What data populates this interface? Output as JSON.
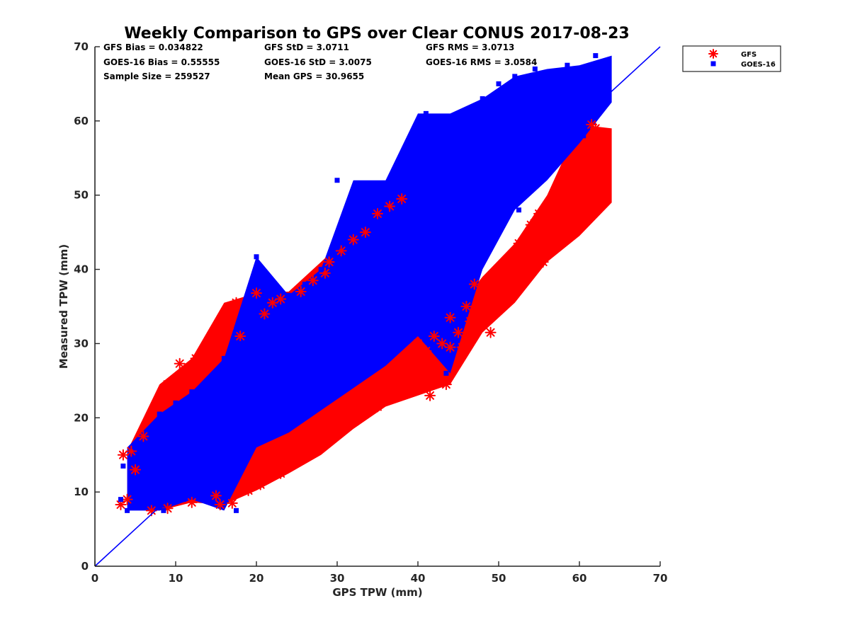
{
  "chart_data": {
    "type": "scatter",
    "title": "Weekly Comparison to GPS over Clear CONUS 2017-08-23",
    "xlabel": "GPS TPW (mm)",
    "ylabel": "Measured TPW (mm)",
    "xlim": [
      0,
      70
    ],
    "ylim": [
      0,
      70
    ],
    "xticks": [
      "0",
      "10",
      "20",
      "30",
      "40",
      "50",
      "60",
      "70"
    ],
    "yticks": [
      "0",
      "10",
      "20",
      "30",
      "40",
      "50",
      "60",
      "70"
    ],
    "grid": false,
    "legend_placement": "outside top-right",
    "reference_line": {
      "x": [
        0,
        70
      ],
      "y": [
        0,
        70
      ],
      "color": "#0000ff"
    },
    "stats": [
      [
        "GFS Bias = 0.034822",
        "GFS StD = 3.0711",
        "GFS RMS = 3.0713"
      ],
      [
        "GOES-16 Bias = 0.55555",
        "GOES-16 StD = 3.0075",
        "GOES-16 RMS = 3.0584"
      ],
      [
        "Sample Size = 259527",
        "Mean GPS = 30.9655",
        ""
      ]
    ],
    "series": [
      {
        "name": "GFS",
        "marker": "asterisk",
        "color": "#ff0000",
        "points": [
          [
            3.2,
            8.3
          ],
          [
            3.5,
            15.0
          ],
          [
            4.0,
            9.0
          ],
          [
            4.5,
            15.5
          ],
          [
            5.0,
            13.0
          ],
          [
            6.0,
            17.5
          ],
          [
            7.0,
            7.5
          ],
          [
            7.5,
            21.0
          ],
          [
            8.0,
            22.5
          ],
          [
            9.0,
            7.8
          ],
          [
            9.0,
            24.5
          ],
          [
            10.0,
            24.0
          ],
          [
            10.5,
            27.3
          ],
          [
            11.5,
            25.5
          ],
          [
            12.0,
            8.6
          ],
          [
            12.5,
            28.0
          ],
          [
            14.0,
            27.5
          ],
          [
            15.0,
            9.5
          ],
          [
            15.0,
            29.0
          ],
          [
            15.5,
            8.3
          ],
          [
            16.5,
            32.0
          ],
          [
            17.0,
            8.5
          ],
          [
            17.5,
            35.5
          ],
          [
            18.0,
            31.0
          ],
          [
            19.0,
            10.2
          ],
          [
            20.0,
            36.8
          ],
          [
            20.5,
            11.0
          ],
          [
            21.0,
            34.0
          ],
          [
            22.0,
            35.5
          ],
          [
            23.0,
            12.5
          ],
          [
            23.0,
            36.0
          ],
          [
            24.0,
            13.5
          ],
          [
            25.0,
            14.5
          ],
          [
            25.5,
            37.0
          ],
          [
            26.0,
            15.0
          ],
          [
            27.0,
            38.5
          ],
          [
            27.5,
            16.0
          ],
          [
            28.0,
            17.5
          ],
          [
            28.5,
            39.5
          ],
          [
            29.0,
            41.0
          ],
          [
            30.0,
            18.5
          ],
          [
            30.5,
            42.5
          ],
          [
            31.0,
            19.5
          ],
          [
            32.0,
            20.0
          ],
          [
            32.0,
            44.0
          ],
          [
            33.0,
            21.5
          ],
          [
            33.5,
            45.0
          ],
          [
            34.0,
            22.5
          ],
          [
            35.0,
            21.5
          ],
          [
            35.0,
            47.5
          ],
          [
            36.0,
            23.0
          ],
          [
            36.5,
            48.5
          ],
          [
            37.0,
            24.5
          ],
          [
            38.0,
            49.5
          ],
          [
            38.0,
            25.5
          ],
          [
            39.0,
            25.0
          ],
          [
            39.0,
            28.5
          ],
          [
            40.0,
            30.0
          ],
          [
            40.0,
            24.0
          ],
          [
            41.0,
            29.0
          ],
          [
            41.5,
            23.0
          ],
          [
            42.0,
            31.0
          ],
          [
            42.0,
            27.0
          ],
          [
            43.0,
            30.0
          ],
          [
            43.5,
            24.5
          ],
          [
            44.0,
            29.5
          ],
          [
            44.0,
            33.5
          ],
          [
            45.0,
            31.5
          ],
          [
            45.5,
            29.5
          ],
          [
            46.0,
            35.0
          ],
          [
            46.5,
            33.0
          ],
          [
            47.0,
            38.0
          ],
          [
            48.0,
            36.5
          ],
          [
            48.5,
            37.5
          ],
          [
            49.0,
            31.5
          ],
          [
            49.5,
            39.0
          ],
          [
            50.0,
            35.5
          ],
          [
            50.5,
            38.0
          ],
          [
            51.0,
            37.0
          ],
          [
            51.5,
            41.0
          ],
          [
            52.0,
            40.0
          ],
          [
            52.5,
            43.5
          ],
          [
            53.0,
            41.5
          ],
          [
            54.0,
            46.0
          ],
          [
            54.5,
            44.0
          ],
          [
            55.0,
            47.5
          ],
          [
            55.5,
            41.0
          ],
          [
            56.0,
            44.5
          ],
          [
            56.5,
            47.0
          ],
          [
            57.0,
            45.5
          ],
          [
            57.5,
            50.0
          ],
          [
            58.0,
            44.5
          ],
          [
            58.5,
            48.5
          ],
          [
            59.0,
            46.5
          ],
          [
            59.5,
            51.5
          ],
          [
            60.0,
            53.5
          ],
          [
            60.5,
            55.0
          ],
          [
            61.0,
            56.5
          ],
          [
            61.0,
            50.0
          ],
          [
            61.5,
            59.5
          ],
          [
            61.5,
            57.5
          ],
          [
            62.0,
            49.0
          ],
          [
            62.5,
            53.0
          ],
          [
            62.8,
            55.0
          ],
          [
            62.8,
            56.0
          ],
          [
            62.0,
            59.0
          ]
        ]
      },
      {
        "name": "GOES-16",
        "marker": "square",
        "color": "#0000ff",
        "points": [
          [
            3.2,
            9.0
          ],
          [
            3.5,
            13.5
          ],
          [
            4.0,
            7.5
          ],
          [
            5.0,
            16.0
          ],
          [
            6.0,
            12.0
          ],
          [
            7.0,
            18.5
          ],
          [
            8.0,
            20.5
          ],
          [
            8.5,
            7.5
          ],
          [
            9.0,
            14.0
          ],
          [
            10.0,
            22.0
          ],
          [
            11.0,
            9.0
          ],
          [
            12.0,
            23.5
          ],
          [
            13.0,
            18.0
          ],
          [
            14.0,
            25.0
          ],
          [
            15.0,
            12.0
          ],
          [
            16.0,
            28.0
          ],
          [
            17.0,
            20.0
          ],
          [
            17.5,
            7.5
          ],
          [
            18.0,
            30.0
          ],
          [
            19.0,
            16.0
          ],
          [
            20.0,
            32.0
          ],
          [
            20.0,
            41.7
          ],
          [
            21.0,
            22.0
          ],
          [
            22.0,
            34.0
          ],
          [
            23.0,
            18.0
          ],
          [
            24.0,
            36.5
          ],
          [
            25.0,
            26.0
          ],
          [
            26.0,
            38.0
          ],
          [
            27.0,
            21.0
          ],
          [
            28.0,
            40.0
          ],
          [
            29.0,
            30.0
          ],
          [
            30.0,
            43.0
          ],
          [
            30.0,
            52.0
          ],
          [
            31.0,
            24.0
          ],
          [
            31.5,
            47.5
          ],
          [
            32.0,
            46.0
          ],
          [
            32.5,
            50.0
          ],
          [
            33.0,
            34.0
          ],
          [
            34.0,
            51.0
          ],
          [
            34.0,
            47.0
          ],
          [
            35.0,
            27.0
          ],
          [
            36.0,
            48.0
          ],
          [
            36.0,
            38.0
          ],
          [
            37.0,
            52.0
          ],
          [
            38.0,
            42.0
          ],
          [
            38.5,
            31.0
          ],
          [
            39.0,
            55.0
          ],
          [
            40.0,
            46.0
          ],
          [
            41.0,
            57.0
          ],
          [
            41.0,
            61.0
          ],
          [
            42.0,
            36.0
          ],
          [
            43.0,
            59.0
          ],
          [
            43.5,
            26.0
          ],
          [
            44.0,
            50.0
          ],
          [
            45.0,
            61.0
          ],
          [
            46.0,
            40.0
          ],
          [
            47.0,
            59.5
          ],
          [
            48.0,
            53.0
          ],
          [
            48.0,
            63.0
          ],
          [
            49.0,
            45.0
          ],
          [
            50.0,
            61.5
          ],
          [
            50.0,
            65.0
          ],
          [
            51.0,
            55.0
          ],
          [
            52.0,
            66.0
          ],
          [
            52.5,
            48.0
          ],
          [
            53.0,
            63.0
          ],
          [
            54.0,
            59.0
          ],
          [
            54.5,
            67.0
          ],
          [
            55.0,
            52.0
          ],
          [
            56.0,
            64.5
          ],
          [
            56.5,
            56.0
          ],
          [
            57.0,
            66.5
          ],
          [
            58.0,
            60.0
          ],
          [
            58.5,
            67.5
          ],
          [
            59.0,
            57.0
          ],
          [
            60.0,
            62.0
          ],
          [
            60.5,
            58.0
          ],
          [
            61.0,
            60.5
          ],
          [
            62.0,
            68.8
          ],
          [
            62.5,
            62.5
          ],
          [
            63.0,
            66.0
          ],
          [
            40.0,
            56.0
          ],
          [
            44.0,
            56.0
          ],
          [
            47.0,
            57.0
          ]
        ]
      }
    ]
  }
}
